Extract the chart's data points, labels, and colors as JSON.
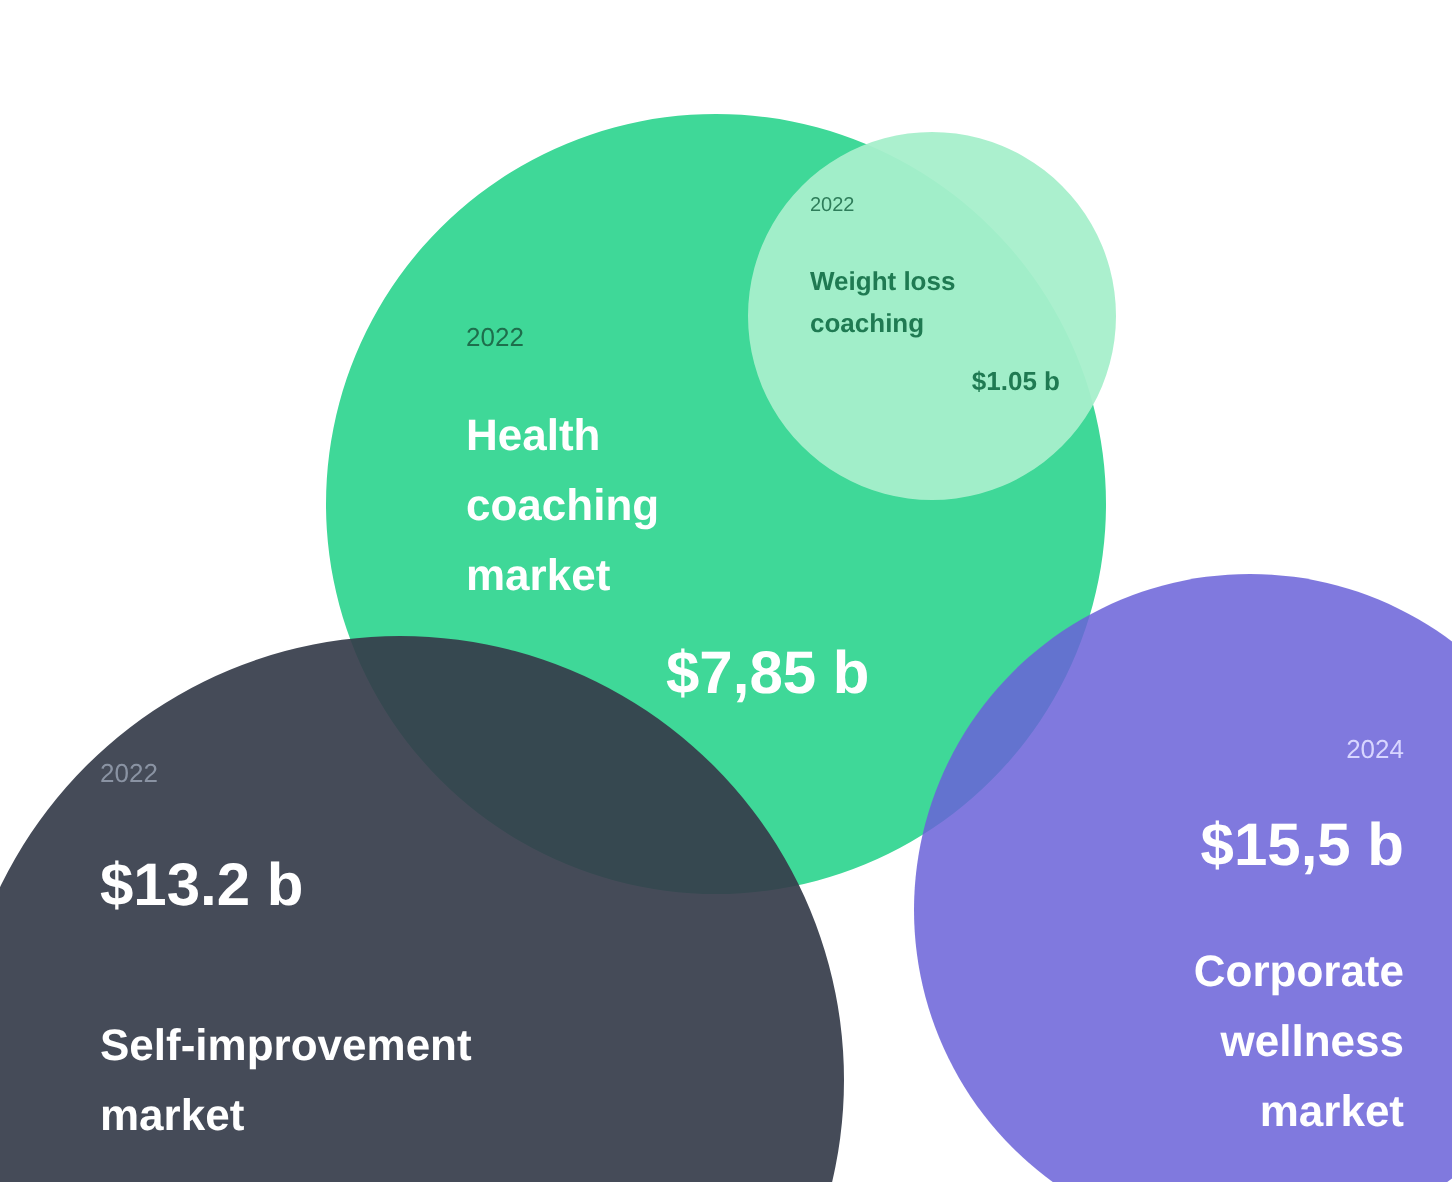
{
  "chart_data": {
    "type": "other",
    "categories": [
      "Health\ncoaching\nmarket",
      "Weight loss\ncoaching",
      "Self-improvement\nmarket",
      "Corporate\nwellness\nmarket"
    ],
    "values": [
      7.85,
      1.05,
      13.2,
      15.5
    ],
    "value_labels": [
      "$7,85 b",
      "$1.05 b",
      "$13.2 b",
      "$15,5 b"
    ],
    "colors": [
      "#3fd898",
      "#a6efcb",
      "#353c4a",
      "#6a62d8"
    ],
    "annotations": [
      "2022",
      "2022",
      "2022",
      "2024"
    ]
  }
}
